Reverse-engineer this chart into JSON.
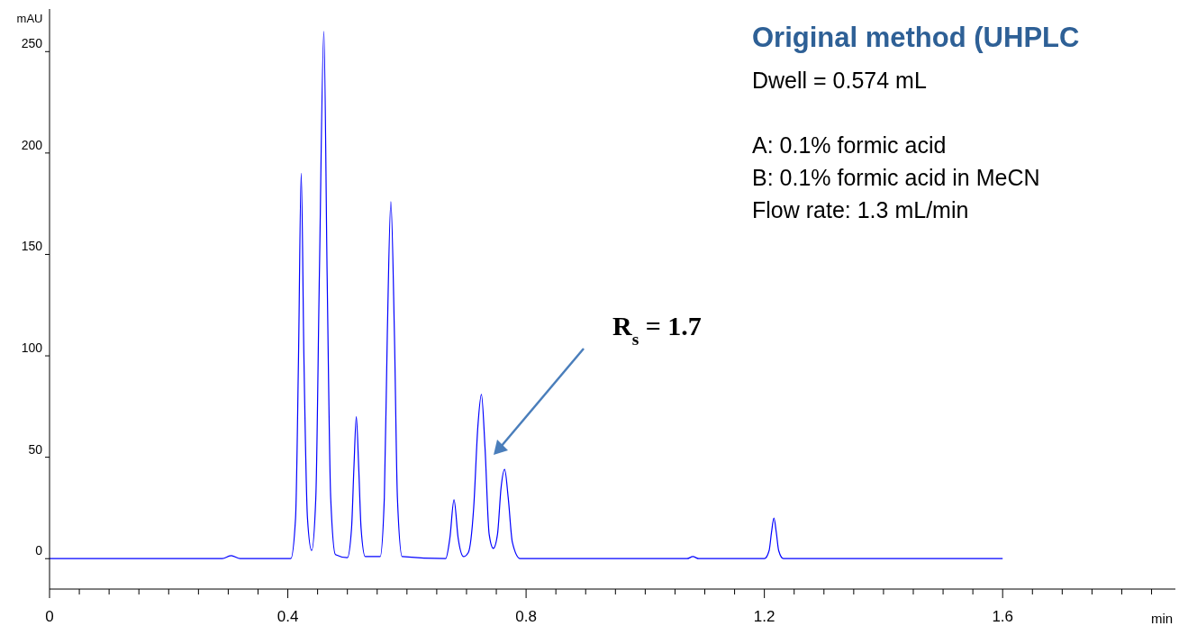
{
  "chart_data": {
    "type": "line",
    "title": "Original method (UHPLC",
    "xlabel": "min",
    "ylabel": "mAU",
    "xlim": [
      0,
      1.89
    ],
    "ylim": [
      -15,
      271
    ],
    "xticks": [
      0,
      {
        "value": 0.05,
        "label": null
      },
      {
        "value": 0.1,
        "label": null
      },
      {
        "value": 0.15,
        "label": null
      },
      {
        "value": 0.2,
        "label": null
      },
      {
        "value": 0.25,
        "label": null
      },
      {
        "value": 0.3,
        "label": null
      },
      {
        "value": 0.35,
        "label": null
      },
      0.4,
      {
        "value": 0.45,
        "label": null
      },
      {
        "value": 0.5,
        "label": null
      },
      {
        "value": 0.55,
        "label": null
      },
      {
        "value": 0.6,
        "label": null
      },
      {
        "value": 0.65,
        "label": null
      },
      {
        "value": 0.7,
        "label": null
      },
      {
        "value": 0.75,
        "label": null
      },
      0.8,
      {
        "value": 0.85,
        "label": null
      },
      {
        "value": 0.9,
        "label": null
      },
      {
        "value": 0.95,
        "label": null
      },
      {
        "value": 1.0,
        "label": null
      },
      {
        "value": 1.05,
        "label": null
      },
      {
        "value": 1.1,
        "label": null
      },
      {
        "value": 1.15,
        "label": null
      },
      1.2,
      {
        "value": 1.25,
        "label": null
      },
      {
        "value": 1.3,
        "label": null
      },
      {
        "value": 1.35,
        "label": null
      },
      {
        "value": 1.4,
        "label": null
      },
      {
        "value": 1.45,
        "label": null
      },
      {
        "value": 1.5,
        "label": null
      },
      {
        "value": 1.55,
        "label": null
      },
      1.6,
      {
        "value": 1.65,
        "label": null
      },
      {
        "value": 1.7,
        "label": null
      },
      {
        "value": 1.75,
        "label": null
      },
      {
        "value": 1.8,
        "label": null
      },
      {
        "value": 1.85,
        "label": null
      }
    ],
    "yticks": [
      0,
      50,
      100,
      150,
      200,
      250
    ],
    "grid": false,
    "marker": "none",
    "line_style": "solid",
    "series": [
      {
        "color": "#0000ff",
        "x": [
          0,
          0.2,
          0.29,
          0.305,
          0.32,
          0.405,
          0.413,
          0.418,
          0.4225,
          0.427,
          0.433,
          0.44,
          0.447,
          0.453,
          0.4605,
          0.466,
          0.472,
          0.48,
          0.5,
          0.507,
          0.511,
          0.515,
          0.519,
          0.523,
          0.53,
          0.555,
          0.562,
          0.567,
          0.573,
          0.579,
          0.584,
          0.592,
          0.665,
          0.672,
          0.679,
          0.686,
          0.695,
          0.703,
          0.712,
          0.719,
          0.725,
          0.731,
          0.738,
          0.745,
          0.752,
          0.758,
          0.764,
          0.77,
          0.777,
          0.79,
          1.07,
          1.08,
          1.09,
          1.2,
          1.208,
          1.212,
          1.216,
          1.22,
          1.224,
          1.232,
          1.6
        ],
        "values": [
          0,
          0,
          0,
          1.5,
          0,
          0,
          20,
          100,
          190,
          100,
          20,
          4,
          30,
          140,
          260,
          140,
          30,
          2,
          0.5,
          15,
          45,
          70,
          45,
          15,
          1,
          1,
          30,
          110,
          176,
          110,
          30,
          1,
          0,
          10,
          29,
          10,
          1,
          3,
          25,
          65,
          81,
          55,
          12,
          5,
          12,
          35,
          44,
          30,
          8,
          0,
          0,
          1,
          0,
          0,
          4,
          13,
          20,
          13,
          4,
          0,
          0
        ]
      }
    ],
    "annotations": [
      "R$_{s}$ = 1.7",
      "Dwell = 0.574 mL",
      "A: 0.1% formic acid",
      "B: 0.1% formic acid in MeCN",
      "Flow rate: 1.3 mL/min"
    ]
  }
}
